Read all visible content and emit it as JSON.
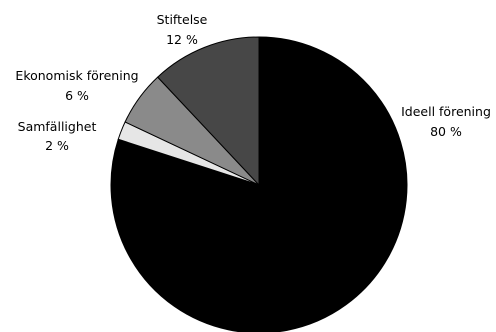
{
  "chart_data": {
    "type": "pie",
    "start_angle_deg": 0,
    "direction": "clockwise",
    "slices": [
      {
        "label": "Ideell förening",
        "value": 80,
        "value_label": "80 %",
        "color": "#000000"
      },
      {
        "label": "Samfällighet",
        "value": 2,
        "value_label": "2 %",
        "color": "#e6e6e6"
      },
      {
        "label": "Ekonomisk förening",
        "value": 6,
        "value_label": "6 %",
        "color": "#8a8a8a"
      },
      {
        "label": "Stiftelse",
        "value": 12,
        "value_label": "12 %",
        "color": "#474747"
      }
    ]
  }
}
